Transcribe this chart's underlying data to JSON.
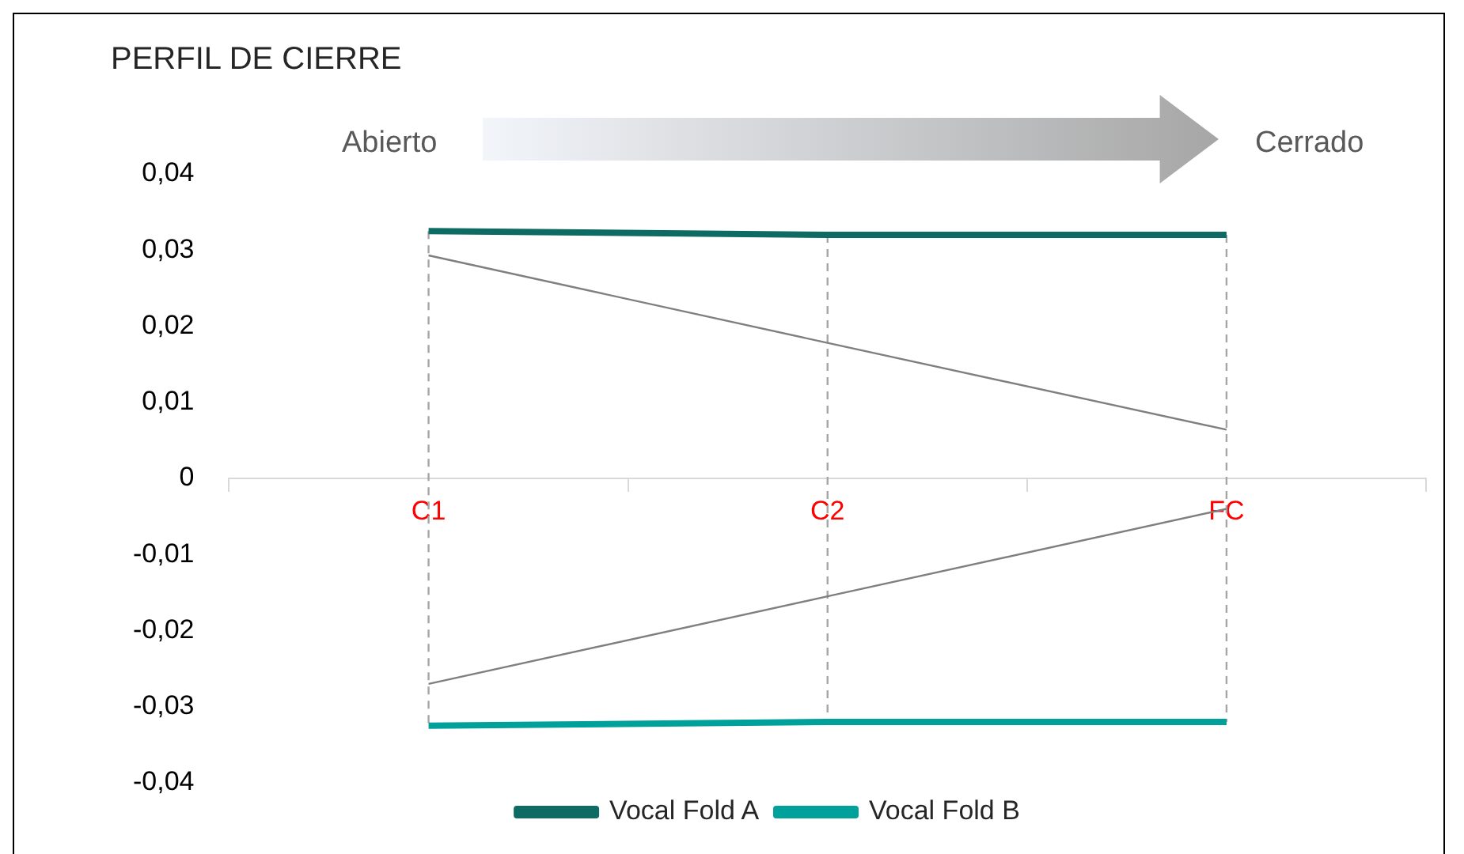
{
  "chart_data": {
    "type": "line",
    "title": "PERFIL DE CIERRE",
    "categories": [
      "C1",
      "C2",
      "FC"
    ],
    "series": [
      {
        "name": "Vocal Fold A",
        "color": "#0d6b63",
        "values": [
          0.0325,
          0.032,
          0.032
        ]
      },
      {
        "name": "Vocal Fold B",
        "color": "#00a19a",
        "values": [
          -0.0325,
          -0.032,
          -0.032
        ]
      },
      {
        "type": "line",
        "color": "#7f7f7f",
        "values": [
          0.0293,
          0.0178,
          0.0064
        ]
      },
      {
        "type": "line",
        "color": "#7f7f7f",
        "values": [
          -0.027,
          -0.0155,
          -0.004
        ]
      }
    ],
    "ylim": [
      -0.04,
      0.04
    ],
    "yticks": [
      {
        "value": -0.04,
        "label": "-0,04"
      },
      {
        "value": -0.03,
        "label": "-0,03"
      },
      {
        "value": -0.02,
        "label": "-0,02"
      },
      {
        "value": -0.01,
        "label": "-0,01"
      },
      0,
      {
        "value": 0.01,
        "label": "0,01"
      },
      {
        "value": 0.02,
        "label": "0,02"
      },
      {
        "value": 0.03,
        "label": "0,03"
      },
      {
        "value": 0.04,
        "label": "0,04"
      }
    ],
    "annotations": [
      "Abierto",
      "Cerrado"
    ],
    "grid": "x",
    "legend": "bottom",
    "marker": "none",
    "line_style": "solid"
  }
}
